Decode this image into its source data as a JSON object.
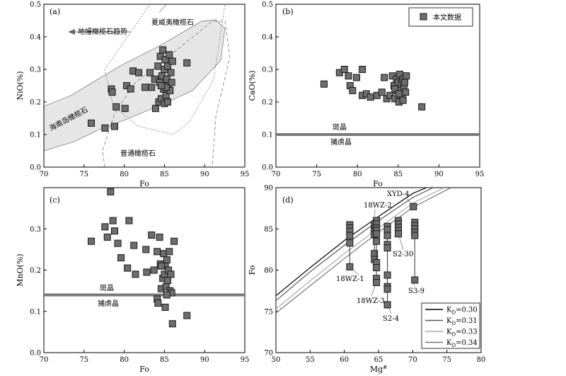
{
  "chart_data": [
    {
      "type": "scatter",
      "panel": "(a)",
      "xlabel": "Fo",
      "ylabel": "NiO(%)",
      "xlim": [
        70,
        95
      ],
      "ylim": [
        0.0,
        0.5
      ],
      "xticks": [
        "70",
        "75",
        "80",
        "85",
        "90",
        "95"
      ],
      "yticks": [
        "0.0",
        "0.1",
        "0.2",
        "0.3",
        "0.4",
        "0.5"
      ],
      "annotations": [
        "地幔橄榄石趋势",
        "夏威夷橄榄石",
        "海南岛橄榄石",
        "普通橄榄石"
      ],
      "series": [
        {
          "name": "本文数据",
          "points": [
            [
              75.9,
              0.135
            ],
            [
              77.6,
              0.12
            ],
            [
              78.4,
              0.24
            ],
            [
              78.8,
              0.125
            ],
            [
              79.0,
              0.185
            ],
            [
              78.5,
              0.23
            ],
            [
              80.1,
              0.18
            ],
            [
              80.3,
              0.25
            ],
            [
              80.8,
              0.24
            ],
            [
              81.1,
              0.295
            ],
            [
              81.8,
              0.29
            ],
            [
              82.6,
              0.245
            ],
            [
              83.2,
              0.29
            ],
            [
              83.4,
              0.245
            ],
            [
              83.8,
              0.27
            ],
            [
              83.9,
              0.18
            ],
            [
              84.2,
              0.31
            ],
            [
              84.3,
              0.2
            ],
            [
              84.4,
              0.26
            ],
            [
              84.5,
              0.34
            ],
            [
              84.6,
              0.21
            ],
            [
              84.7,
              0.28
            ],
            [
              84.8,
              0.36
            ],
            [
              84.9,
              0.24
            ],
            [
              85.0,
              0.3
            ],
            [
              85.0,
              0.195
            ],
            [
              85.1,
              0.33
            ],
            [
              85.2,
              0.22
            ],
            [
              85.3,
              0.27
            ],
            [
              85.4,
              0.31
            ],
            [
              85.5,
              0.25
            ],
            [
              85.6,
              0.345
            ],
            [
              85.7,
              0.235
            ],
            [
              85.8,
              0.29
            ],
            [
              85.9,
              0.26
            ],
            [
              86.0,
              0.325
            ],
            [
              85.2,
              0.245
            ],
            [
              84.6,
              0.25
            ],
            [
              85.4,
              0.2
            ],
            [
              87.8,
              0.32
            ]
          ]
        }
      ]
    },
    {
      "type": "scatter",
      "panel": "(b)",
      "xlabel": "Fo",
      "ylabel": "CaO(%)",
      "xlim": [
        70,
        95
      ],
      "ylim": [
        0.0,
        0.5
      ],
      "xticks": [
        "70",
        "75",
        "80",
        "85",
        "90",
        "95"
      ],
      "yticks": [
        "0.0",
        "0.1",
        "0.2",
        "0.3",
        "0.4",
        "0.5"
      ],
      "legend": "本文数据",
      "threshold": {
        "value": 0.1,
        "above": "斑晶",
        "below": "捕虏晶"
      },
      "series": [
        {
          "name": "本文数据",
          "points": [
            [
              75.9,
              0.255
            ],
            [
              77.8,
              0.29
            ],
            [
              78.4,
              0.3
            ],
            [
              78.9,
              0.28
            ],
            [
              79.1,
              0.25
            ],
            [
              79.4,
              0.235
            ],
            [
              79.9,
              0.275
            ],
            [
              80.6,
              0.3
            ],
            [
              80.6,
              0.22
            ],
            [
              81.1,
              0.225
            ],
            [
              81.6,
              0.215
            ],
            [
              82.4,
              0.22
            ],
            [
              83.0,
              0.23
            ],
            [
              83.3,
              0.275
            ],
            [
              83.6,
              0.21
            ],
            [
              84.0,
              0.22
            ],
            [
              84.3,
              0.28
            ],
            [
              84.5,
              0.25
            ],
            [
              84.6,
              0.21
            ],
            [
              84.8,
              0.27
            ],
            [
              84.9,
              0.235
            ],
            [
              85.0,
              0.26
            ],
            [
              85.1,
              0.2
            ],
            [
              85.2,
              0.285
            ],
            [
              85.3,
              0.24
            ],
            [
              85.4,
              0.255
            ],
            [
              85.5,
              0.22
            ],
            [
              85.6,
              0.27
            ],
            [
              85.7,
              0.245
            ],
            [
              85.8,
              0.26
            ],
            [
              85.9,
              0.23
            ],
            [
              86.0,
              0.28
            ],
            [
              84.6,
              0.24
            ],
            [
              85.1,
              0.225
            ],
            [
              85.6,
              0.205
            ],
            [
              87.9,
              0.185
            ]
          ]
        }
      ]
    },
    {
      "type": "scatter",
      "panel": "(c)",
      "xlabel": "Fo",
      "ylabel": "MnO(%)",
      "xlim": [
        70,
        95
      ],
      "ylim": [
        0.0,
        0.4
      ],
      "xticks": [
        "70",
        "75",
        "80",
        "85",
        "90",
        "95"
      ],
      "yticks": [
        "0.0",
        "0.1",
        "0.2",
        "0.3"
      ],
      "threshold": {
        "value": 0.14,
        "above": "斑晶",
        "below": "捕虏晶"
      },
      "series": [
        {
          "name": "本文数据",
          "points": [
            [
              75.9,
              0.27
            ],
            [
              77.6,
              0.305
            ],
            [
              77.9,
              0.28
            ],
            [
              78.3,
              0.39
            ],
            [
              78.6,
              0.32
            ],
            [
              78.8,
              0.295
            ],
            [
              79.2,
              0.265
            ],
            [
              79.6,
              0.23
            ],
            [
              80.4,
              0.205
            ],
            [
              80.6,
              0.32
            ],
            [
              81.2,
              0.26
            ],
            [
              81.4,
              0.19
            ],
            [
              82.7,
              0.25
            ],
            [
              82.8,
              0.195
            ],
            [
              83.4,
              0.285
            ],
            [
              83.7,
              0.2
            ],
            [
              84.1,
              0.245
            ],
            [
              84.1,
              0.13
            ],
            [
              84.2,
              0.12
            ],
            [
              84.4,
              0.28
            ],
            [
              84.5,
              0.215
            ],
            [
              84.6,
              0.155
            ],
            [
              84.8,
              0.18
            ],
            [
              84.9,
              0.24
            ],
            [
              85.0,
              0.19
            ],
            [
              85.1,
              0.21
            ],
            [
              85.1,
              0.11
            ],
            [
              85.2,
              0.16
            ],
            [
              85.3,
              0.225
            ],
            [
              85.4,
              0.175
            ],
            [
              85.5,
              0.2
            ],
            [
              85.6,
              0.245
            ],
            [
              85.7,
              0.15
            ],
            [
              85.8,
              0.19
            ],
            [
              85.9,
              0.145
            ],
            [
              86.0,
              0.07
            ],
            [
              86.2,
              0.27
            ],
            [
              84.6,
              0.21
            ],
            [
              85.3,
              0.14
            ],
            [
              87.8,
              0.09
            ]
          ]
        }
      ]
    },
    {
      "type": "line",
      "panel": "(d)",
      "xlabel": "Mg#",
      "ylabel": "Fo",
      "xlim": [
        50,
        80
      ],
      "ylim": [
        70,
        90
      ],
      "xticks": [
        "50",
        "55",
        "60",
        "65",
        "70",
        "75",
        "80"
      ],
      "yticks": [
        "70",
        "75",
        "80",
        "85",
        "90"
      ],
      "legend_position": "bottom-right",
      "curves": [
        {
          "name": "K",
          "subscript": "D",
          "value": "=0.30",
          "color": "#000000",
          "points": [
            [
              50,
              76.9
            ],
            [
              55,
              80.3
            ],
            [
              60,
              83.6
            ],
            [
              65,
              86.5
            ],
            [
              70,
              89.3
            ],
            [
              72,
              90
            ]
          ]
        },
        {
          "name": "K",
          "subscript": "D",
          "value": "=0.31",
          "color": "#555555",
          "points": [
            [
              50,
              76.3
            ],
            [
              55,
              79.8
            ],
            [
              60,
              83.0
            ],
            [
              65,
              86.0
            ],
            [
              70,
              88.8
            ],
            [
              73,
              90
            ]
          ]
        },
        {
          "name": "K",
          "subscript": "D",
          "value": "=0.33",
          "color": "#aaaaaa",
          "points": [
            [
              50,
              75.3
            ],
            [
              55,
              78.7
            ],
            [
              60,
              82.0
            ],
            [
              65,
              85.1
            ],
            [
              70,
              88.1
            ],
            [
              74.6,
              90
            ]
          ]
        },
        {
          "name": "K",
          "subscript": "D",
          "value": "=0.34",
          "color": "#777777",
          "points": [
            [
              50,
              74.8
            ],
            [
              55,
              78.1
            ],
            [
              60,
              81.4
            ],
            [
              65,
              84.6
            ],
            [
              70,
              87.6
            ],
            [
              75.6,
              90
            ]
          ]
        }
      ],
      "sample_groups": [
        {
          "name": "18WZ-1",
          "mg": 60.8,
          "fo": [
            85.5,
            85.1,
            84.7,
            84.2,
            83.3,
            80.4
          ]
        },
        {
          "name": "18WZ-2",
          "mg": 64.4,
          "fo": [
            85.4,
            85.0,
            84.7,
            84.3,
            82.0,
            81.3
          ]
        },
        {
          "name": "18WZ-3",
          "mg": 64.7,
          "fo": [
            86.0,
            85.6,
            85.1,
            84.8,
            84.4,
            83.5,
            80.9,
            80.3,
            79.0,
            78.5
          ]
        },
        {
          "name": "S2-4",
          "mg": 66.3,
          "fo": [
            85.3,
            84.9,
            84.2,
            83.1,
            82.7,
            79.4,
            78.0,
            77.7,
            75.8
          ]
        },
        {
          "name": "S2-30",
          "mg": 67.9,
          "fo": [
            86.0,
            85.6,
            85.2,
            84.8,
            84.4
          ]
        },
        {
          "name": "XYD-4",
          "mg": 70.1,
          "fo": [
            87.7
          ]
        },
        {
          "name": "S3-9",
          "mg": 70.3,
          "fo": [
            85.8,
            85.4,
            85.0,
            84.6,
            84.2,
            78.8
          ]
        }
      ]
    }
  ]
}
